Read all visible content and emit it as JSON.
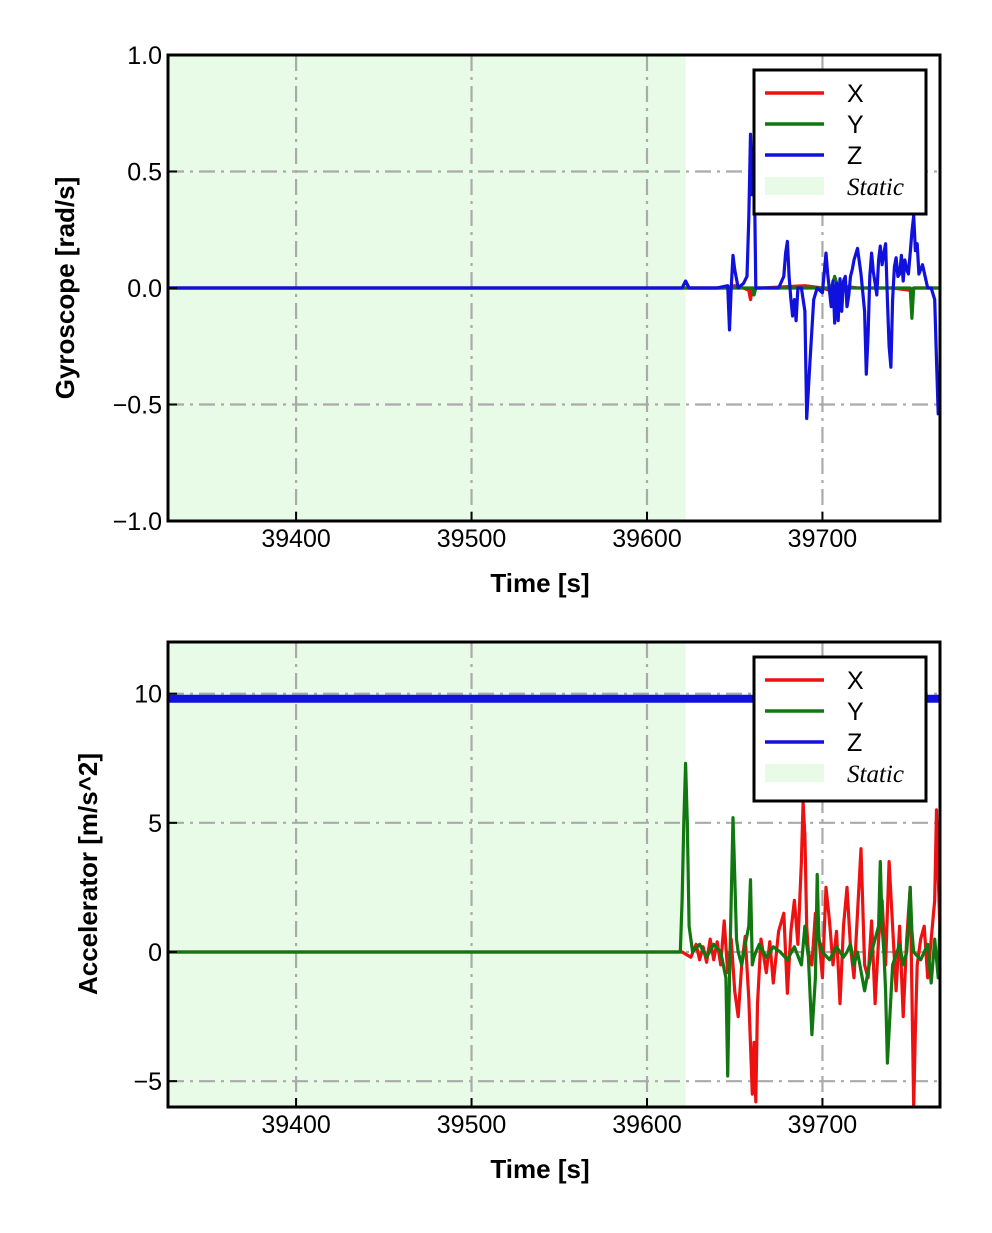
{
  "chart_data": [
    {
      "type": "line",
      "xlabel": "Time [s]",
      "ylabel": "Gyroscope [rad/s]",
      "xlim": [
        39327,
        39767
      ],
      "ylim": [
        -1.0,
        1.0
      ],
      "xticks": [
        39400,
        39500,
        39600,
        39700
      ],
      "xtick_labels": [
        "39400",
        "39500",
        "39600",
        "39700"
      ],
      "yticks": [
        -1.0,
        -0.5,
        0.0,
        0.5,
        1.0
      ],
      "ytick_labels": [
        "−1.0",
        "−0.5",
        "0.0",
        "0.5",
        "1.0"
      ],
      "grid": true,
      "legend_position": "top-right",
      "static_region": {
        "label": "Static",
        "x_start": 39327,
        "x_end": 39622,
        "color": "#e8fbe6"
      },
      "series": [
        {
          "name": "X",
          "color": "#ee1111",
          "x": [
            39327,
            39622,
            39645,
            39650,
            39655,
            39658,
            39659,
            39660,
            39665,
            39690,
            39700,
            39708,
            39710,
            39720,
            39740,
            39750,
            39752,
            39760,
            39767
          ],
          "y": [
            0,
            0,
            0,
            0.01,
            0,
            -0.01,
            -0.05,
            0,
            0,
            0.01,
            0,
            -0.02,
            0.01,
            0,
            0,
            -0.01,
            0,
            0,
            0
          ]
        },
        {
          "name": "Y",
          "color": "#117711",
          "x": [
            39327,
            39622,
            39660,
            39661,
            39662,
            39700,
            39705,
            39707,
            39709,
            39740,
            39750,
            39751,
            39752,
            39767
          ],
          "y": [
            0,
            0,
            0,
            -0.03,
            0,
            0,
            0,
            0.05,
            0,
            0,
            0,
            -0.13,
            0,
            0
          ]
        },
        {
          "name": "Z",
          "color": "#1111dd",
          "x": [
            39327,
            39620,
            39622,
            39624,
            39640,
            39646,
            39647,
            39648,
            39649,
            39650,
            39652,
            39655,
            39657,
            39658,
            39659,
            39660,
            39661,
            39662,
            39665,
            39675,
            39678,
            39679,
            39680,
            39681,
            39682,
            39683,
            39684,
            39685,
            39686,
            39688,
            39690,
            39691,
            39693,
            39695,
            39697,
            39700,
            39702,
            39703,
            39705,
            39706,
            39707,
            39708,
            39709,
            39710,
            39711,
            39712,
            39713,
            39714,
            39715,
            39716,
            39717,
            39718,
            39720,
            39722,
            39724,
            39725,
            39726,
            39727,
            39728,
            39729,
            39730,
            39731,
            39732,
            39733,
            39734,
            39735,
            39736,
            39737,
            39738,
            39739,
            39740,
            39741,
            39742,
            39743,
            39744,
            39745,
            39746,
            39747,
            39748,
            39749,
            39750,
            39751,
            39752,
            39753,
            39754,
            39755,
            39757,
            39760,
            39762,
            39764,
            39765,
            39766,
            39767
          ],
          "y": [
            0,
            0,
            0.03,
            0,
            0,
            0.01,
            -0.18,
            0,
            0.14,
            0.08,
            0,
            0.02,
            0.05,
            0.3,
            0.66,
            0.4,
            0.6,
            0,
            0,
            0,
            0.05,
            0.15,
            0.2,
            0.05,
            -0.05,
            -0.12,
            -0.05,
            -0.14,
            0,
            0,
            -0.1,
            -0.56,
            -0.3,
            -0.05,
            0,
            -0.02,
            0.15,
            0.06,
            -0.08,
            0.03,
            -0.15,
            0.02,
            -0.14,
            0.04,
            -0.1,
            0.03,
            0.05,
            -0.08,
            -0.03,
            0.05,
            0.08,
            0.12,
            0.17,
            0.06,
            -0.1,
            -0.37,
            -0.2,
            0.05,
            0.15,
            0.07,
            0.02,
            -0.03,
            0.12,
            0.18,
            0.1,
            0.15,
            0.19,
            -0.05,
            -0.25,
            -0.34,
            -0.05,
            0.09,
            0.13,
            0.05,
            0.06,
            0.14,
            0.03,
            0.12,
            0.08,
            0.06,
            0.15,
            0.24,
            0.31,
            0.16,
            0.19,
            0.06,
            0.1,
            0.0,
            0.0,
            -0.05,
            -0.31,
            -0.54,
            -0.4
          ]
        }
      ]
    },
    {
      "type": "line",
      "xlabel": "Time [s]",
      "ylabel": "Accelerator [m/s^2]",
      "xlim": [
        39327,
        39767
      ],
      "ylim": [
        -6,
        12
      ],
      "xticks": [
        39400,
        39500,
        39600,
        39700
      ],
      "xtick_labels": [
        "39400",
        "39500",
        "39600",
        "39700"
      ],
      "yticks": [
        -5,
        0,
        5,
        10
      ],
      "ytick_labels": [
        "−5",
        "0",
        "5",
        "10"
      ],
      "grid": true,
      "legend_position": "top-right",
      "static_region": {
        "label": "Static",
        "x_start": 39327,
        "x_end": 39622,
        "color": "#e8fbe6"
      },
      "series": [
        {
          "name": "X",
          "color": "#ee1111",
          "x": [
            39327,
            39620,
            39625,
            39628,
            39630,
            39632,
            39634,
            39636,
            39638,
            39640,
            39642,
            39644,
            39646,
            39648,
            39650,
            39652,
            39654,
            39656,
            39658,
            39660,
            39661,
            39662,
            39663,
            39665,
            39668,
            39670,
            39672,
            39675,
            39678,
            39680,
            39682,
            39684,
            39686,
            39688,
            39689,
            39690,
            39691,
            39692,
            39694,
            39696,
            39698,
            39700,
            39702,
            39704,
            39706,
            39708,
            39710,
            39712,
            39714,
            39716,
            39718,
            39720,
            39722,
            39724,
            39726,
            39728,
            39730,
            39732,
            39734,
            39736,
            39738,
            39740,
            39742,
            39744,
            39746,
            39748,
            39750,
            39751,
            39752,
            39753,
            39754,
            39756,
            39758,
            39760,
            39762,
            39764,
            39765,
            39766,
            39767
          ],
          "y": [
            0,
            0,
            -0.2,
            0.3,
            -0.3,
            0.2,
            -0.4,
            0.5,
            -0.3,
            0.4,
            -0.5,
            1.2,
            -0.8,
            0.5,
            -1.5,
            -2.5,
            -0.5,
            0.6,
            -1.8,
            -5.5,
            -3.5,
            -5.8,
            -2.0,
            0.5,
            -0.8,
            0.4,
            -1.2,
            0.8,
            1.5,
            -1.6,
            0.8,
            2.0,
            0.3,
            3.5,
            5.8,
            4.5,
            1.0,
            0.0,
            -0.5,
            1.5,
            0.6,
            -1.0,
            2.5,
            1.2,
            -0.5,
            0.8,
            -2.0,
            1.0,
            2.5,
            0.2,
            -1.0,
            1.5,
            4.0,
            -0.5,
            -1.0,
            1.2,
            -2.0,
            0.5,
            2.0,
            -0.5,
            3.5,
            1.0,
            -1.5,
            1.0,
            -2.5,
            0.5,
            2.5,
            -1.5,
            -6.0,
            -3.0,
            -0.5,
            0.5,
            1.0,
            -1.0,
            0.5,
            2.0,
            5.5,
            3.0,
            0.8
          ]
        },
        {
          "name": "Y",
          "color": "#117711",
          "x": [
            39327,
            39619,
            39620,
            39621,
            39622,
            39623,
            39624,
            39626,
            39630,
            39634,
            39638,
            39642,
            39645,
            39646,
            39647,
            39648,
            39649,
            39650,
            39651,
            39652,
            39654,
            39656,
            39658,
            39659,
            39660,
            39661,
            39662,
            39664,
            39668,
            39672,
            39676,
            39680,
            39684,
            39688,
            39690,
            39691,
            39692,
            39694,
            39696,
            39697,
            39698,
            39700,
            39704,
            39708,
            39712,
            39714,
            39716,
            39718,
            39720,
            39724,
            39728,
            39732,
            39733,
            39734,
            39735,
            39736,
            39737,
            39740,
            39744,
            39746,
            39748,
            39749,
            39750,
            39751,
            39752,
            39756,
            39760,
            39762,
            39764,
            39766,
            39767
          ],
          "y": [
            0,
            0,
            2.0,
            5.0,
            7.3,
            5.0,
            1.0,
            0.0,
            0.3,
            -0.2,
            0.3,
            0.0,
            -1.0,
            -4.8,
            -1.0,
            2.0,
            5.2,
            3.0,
            0.5,
            0.0,
            -0.5,
            0.3,
            1.0,
            2.8,
            -0.5,
            -0.2,
            0.0,
            0.3,
            -0.2,
            0.2,
            0.0,
            -0.3,
            0.2,
            -0.5,
            1.0,
            0.3,
            -0.2,
            -3.2,
            -1.0,
            3.0,
            0.5,
            0.0,
            -0.3,
            0.2,
            -0.2,
            0.0,
            0.3,
            -0.5,
            0.0,
            -1.5,
            0.0,
            1.0,
            3.5,
            1.0,
            0.0,
            -1.5,
            -4.3,
            -0.5,
            0.3,
            -0.5,
            0.0,
            1.0,
            2.5,
            0.8,
            0.0,
            -0.3,
            0.3,
            -1.2,
            0.5,
            -1.0,
            1.2
          ]
        },
        {
          "name": "Z",
          "color": "#1111dd",
          "x": [
            39327,
            39767
          ],
          "y": [
            9.8,
            9.8
          ]
        }
      ]
    }
  ]
}
